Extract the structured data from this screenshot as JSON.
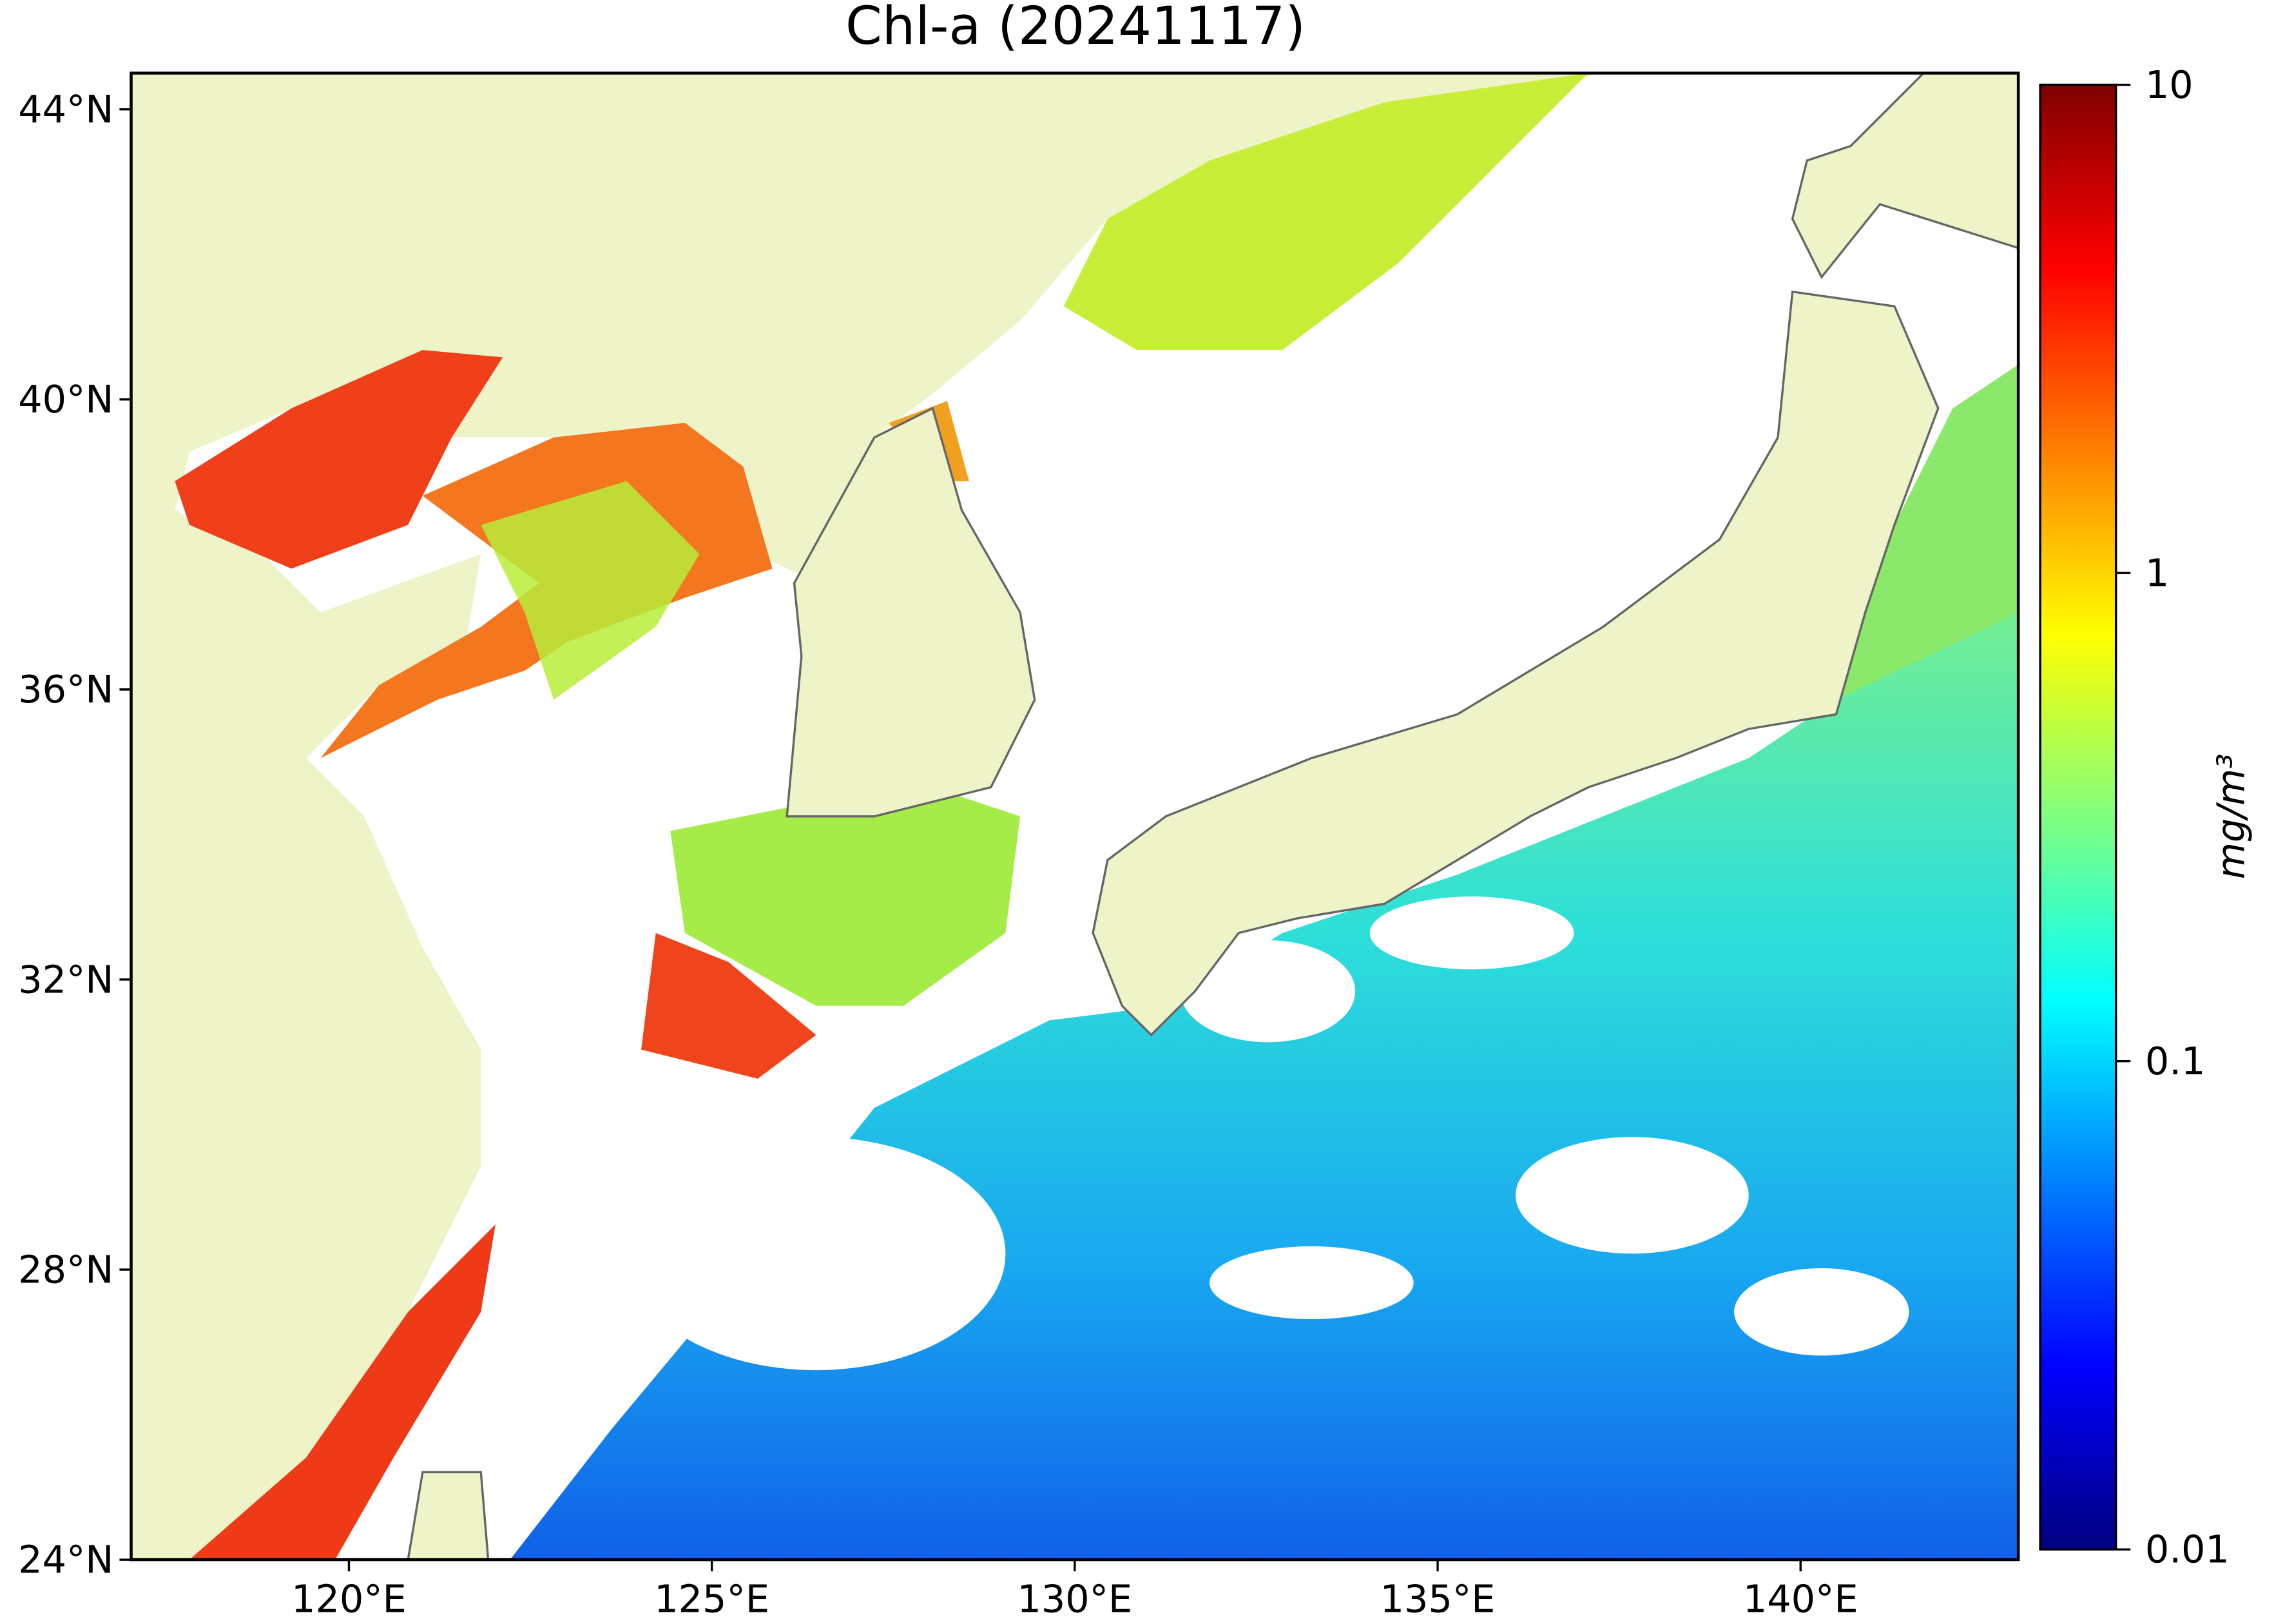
{
  "chart_data": {
    "type": "map",
    "title": "Chl-a (20241117)",
    "xlim": [
      117,
      143
    ],
    "ylim": [
      24,
      44.5
    ],
    "xticks": [
      {
        "value": 120,
        "label": "120°E"
      },
      {
        "value": 125,
        "label": "125°E"
      },
      {
        "value": 130,
        "label": "130°E"
      },
      {
        "value": 135,
        "label": "135°E"
      },
      {
        "value": 140,
        "label": "140°E"
      }
    ],
    "yticks": [
      {
        "value": 24,
        "label": "24°N"
      },
      {
        "value": 28,
        "label": "28°N"
      },
      {
        "value": 32,
        "label": "32°N"
      },
      {
        "value": 36,
        "label": "36°N"
      },
      {
        "value": 40,
        "label": "40°N"
      },
      {
        "value": 44,
        "label": "44°N"
      }
    ],
    "colorbar": {
      "label": "mg/m³",
      "scale": "log",
      "colormap": "jet",
      "lim": [
        0.01,
        10
      ],
      "ticks": [
        0.01,
        0.1,
        1,
        10
      ]
    }
  }
}
